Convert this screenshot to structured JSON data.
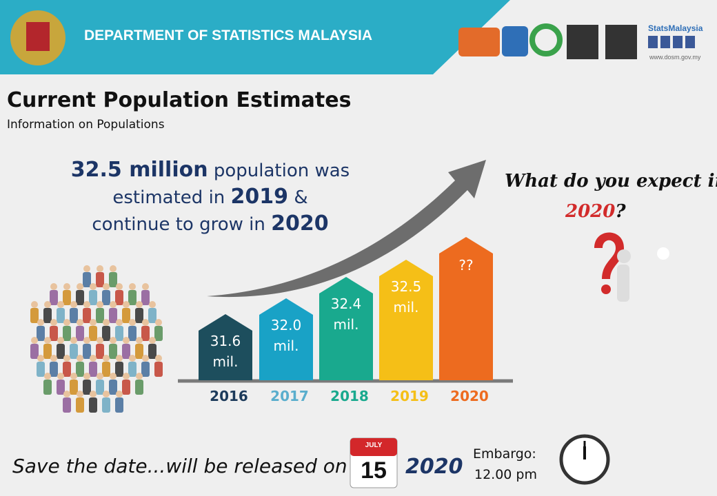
{
  "header": {
    "org": "DEPARTMENT OF STATISTICS MALAYSIA",
    "brand": "StatsMalaysia",
    "url": "www.dosm.gov.my"
  },
  "title": "Current Population Estimates",
  "subtitle": "Information on Populations",
  "headline": {
    "lines": [
      [
        {
          "text": "32.5 million",
          "bold": true
        },
        {
          "text": "population was",
          "bold": false
        }
      ],
      [
        {
          "text": "estimated in",
          "bold": false
        },
        {
          "text": "2019",
          "bold": true
        },
        {
          "text": "&",
          "bold": false
        }
      ],
      [
        {
          "text": "continue to grow in",
          "bold": false
        },
        {
          "text": "2020",
          "bold": true
        }
      ]
    ]
  },
  "question": {
    "text": "What do you expect in",
    "year": "2020",
    "mark": "?"
  },
  "bars": [
    {
      "label": [
        "31.6",
        "mil."
      ],
      "year": "2016",
      "color": "#1d4e5d",
      "year_color": "#1c3a5a"
    },
    {
      "label": [
        "32.0",
        "mil."
      ],
      "year": "2017",
      "color": "#19a2c6",
      "year_color": "#5aaecd"
    },
    {
      "label": [
        "32.4",
        "mil."
      ],
      "year": "2018",
      "color": "#19a98e",
      "year_color": "#19a98e"
    },
    {
      "label": [
        "32.5",
        "mil."
      ],
      "year": "2019",
      "color": "#f5bf17",
      "year_color": "#f5bf17"
    },
    {
      "label": [
        "??"
      ],
      "year": "2020",
      "color": "#ed6b1f",
      "year_color": "#ed6b1f"
    }
  ],
  "footer": {
    "text": "Save the date...will be released on",
    "month": "JULY",
    "day": "15",
    "year": "2020",
    "embargo": "Embargo:",
    "time": "12.00 pm"
  }
}
